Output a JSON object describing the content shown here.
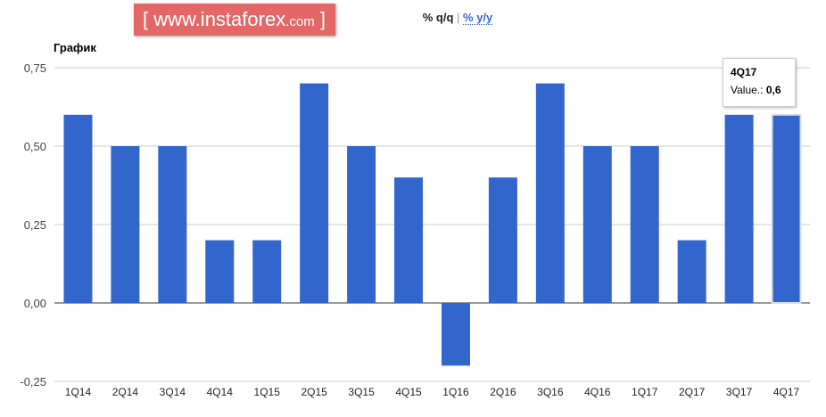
{
  "toggle": {
    "qq": "% q/q",
    "sep": "|",
    "yy": "% y/y"
  },
  "chart_data": {
    "type": "bar",
    "title": "График",
    "categories": [
      "1Q14",
      "2Q14",
      "3Q14",
      "4Q14",
      "1Q15",
      "2Q15",
      "3Q15",
      "4Q15",
      "1Q16",
      "2Q16",
      "3Q16",
      "4Q16",
      "1Q17",
      "2Q17",
      "3Q17",
      "4Q17"
    ],
    "values": [
      0.6,
      0.5,
      0.5,
      0.2,
      0.2,
      0.7,
      0.5,
      0.4,
      -0.2,
      0.4,
      0.7,
      0.5,
      0.5,
      0.2,
      0.6,
      0.6
    ],
    "yticks": [
      -0.25,
      0,
      0.25,
      0.5,
      0.75
    ],
    "ytick_labels": [
      "-0,25",
      "0,00",
      "0,25",
      "0,50",
      "0,75"
    ],
    "ylim": [
      -0.25,
      0.75
    ],
    "grid": true,
    "bar_color": "#3366cc"
  },
  "tooltip": {
    "category": "4Q17",
    "label": "Value.:",
    "value": "0,6"
  },
  "watermark": {
    "open": "[",
    "main": "www.instaforex",
    "tld": ".com",
    "close": "]"
  }
}
